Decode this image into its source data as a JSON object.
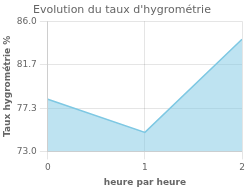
{
  "chart_data": {
    "type": "line",
    "title": "Evolution du taux d'hygrométrie",
    "xlabel": "heure par heure",
    "ylabel": "Taux hygrométrie %",
    "x": [
      0,
      1,
      2
    ],
    "values": [
      78.2,
      74.9,
      84.2
    ],
    "color": "#7ec8e3",
    "xlim": [
      0,
      2
    ],
    "ylim": [
      73.0,
      86.0
    ],
    "xticks": [
      0,
      1,
      2
    ],
    "yticks": [
      {
        "value": 73.0,
        "label": "73.0"
      },
      77.3,
      81.7,
      {
        "value": 86.0,
        "label": "86.0"
      }
    ],
    "grid": true
  }
}
